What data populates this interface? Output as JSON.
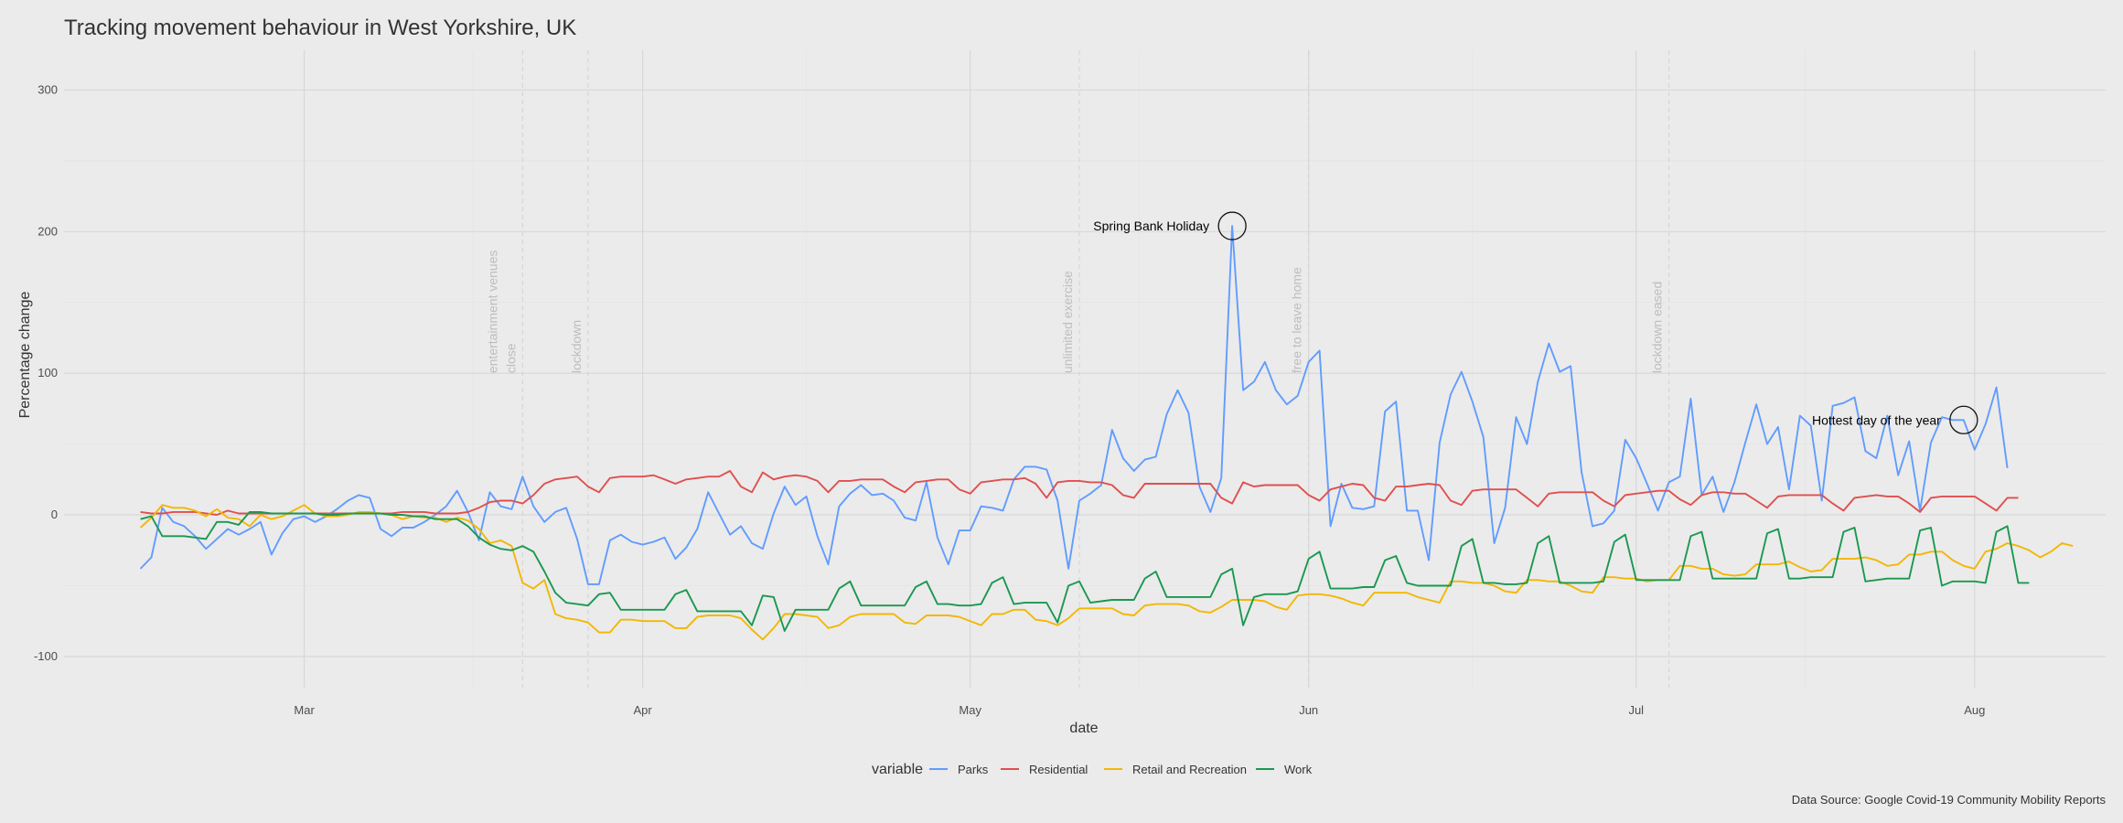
{
  "chart_data": {
    "type": "line",
    "title": "Tracking movement behaviour in West Yorkshire, UK",
    "xlabel": "date",
    "ylabel": "Percentage change",
    "x_range": [
      "2020-02-08",
      "2020-08-13"
    ],
    "ylim": [
      -122,
      328
    ],
    "y_ticks": [
      300,
      200,
      100,
      0,
      -100
    ],
    "y_tick_labels": [
      "300",
      "200",
      "100",
      "0",
      "-100"
    ],
    "x_ticks": [
      {
        "date": "2020-03-01",
        "label": "Mar"
      },
      {
        "date": "2020-04-01",
        "label": "Apr"
      },
      {
        "date": "2020-05-01",
        "label": "May"
      },
      {
        "date": "2020-06-01",
        "label": "Jun"
      },
      {
        "date": "2020-07-01",
        "label": "Jul"
      },
      {
        "date": "2020-08-01",
        "label": "Aug"
      }
    ],
    "grid": true,
    "legend": {
      "title": "variable",
      "position": "bottom"
    },
    "start_date": "2020-02-15",
    "series": [
      {
        "name": "Parks",
        "color": "#619cff",
        "values": [
          -38,
          -30,
          5,
          -5,
          -8,
          -15,
          -24,
          -17,
          -10,
          -14,
          -10,
          -5,
          -28,
          -13,
          -3,
          -1,
          -5,
          -1,
          4,
          10,
          14,
          12,
          -10,
          -15,
          -9,
          -9,
          -5,
          0,
          6,
          17,
          2,
          -18,
          16,
          6,
          4,
          27,
          6,
          -5,
          2,
          5,
          -17,
          -49,
          -49,
          -18,
          -14,
          -19,
          -21,
          -19,
          -16,
          -31,
          -23,
          -10,
          16,
          1,
          -14,
          -8,
          -20,
          -24,
          1,
          20,
          7,
          13,
          -15,
          -35,
          6,
          15,
          21,
          14,
          15,
          10,
          -2,
          -4,
          23,
          -16,
          -35,
          -11,
          -11,
          6,
          5,
          3,
          25,
          34,
          34,
          32,
          10,
          -38,
          10,
          15,
          21,
          60,
          40,
          31,
          39,
          41,
          71,
          88,
          72,
          20,
          2,
          26,
          204,
          88,
          94,
          108,
          88,
          78,
          84,
          108,
          116,
          -8,
          22,
          5,
          4,
          6,
          73,
          80,
          3,
          3,
          -32,
          51,
          85,
          101,
          80,
          55,
          -20,
          5,
          69,
          50,
          94,
          121,
          101,
          105,
          30,
          -8,
          -6,
          3,
          53,
          40,
          22,
          3,
          23,
          27,
          82,
          14,
          27,
          2,
          23,
          51,
          78,
          50,
          62,
          18,
          70,
          63,
          10,
          77,
          79,
          83,
          45,
          40,
          70,
          28,
          52,
          3,
          51,
          69,
          67,
          67,
          46,
          64,
          90,
          33
        ]
      },
      {
        "name": "Residential",
        "color": "#e04f4f",
        "values": [
          2,
          1,
          1,
          2,
          2,
          2,
          1,
          0,
          3,
          1,
          1,
          1,
          1,
          1,
          1,
          1,
          1,
          1,
          1,
          1,
          1,
          1,
          1,
          1,
          2,
          2,
          2,
          1,
          1,
          1,
          2,
          5,
          9,
          10,
          10,
          8,
          14,
          22,
          25,
          26,
          27,
          20,
          16,
          26,
          27,
          27,
          27,
          28,
          25,
          22,
          25,
          26,
          27,
          27,
          31,
          20,
          16,
          30,
          25,
          27,
          28,
          27,
          24,
          16,
          24,
          24,
          25,
          25,
          25,
          20,
          16,
          23,
          24,
          25,
          25,
          18,
          15,
          23,
          24,
          25,
          25,
          26,
          22,
          12,
          23,
          24,
          24,
          23,
          23,
          21,
          14,
          12,
          22,
          22,
          22,
          22,
          22,
          22,
          22,
          12,
          8,
          23,
          20,
          21,
          21,
          21,
          21,
          14,
          10,
          18,
          20,
          22,
          21,
          12,
          10,
          20,
          20,
          21,
          22,
          21,
          10,
          7,
          17,
          18,
          18,
          18,
          18,
          12,
          6,
          15,
          16,
          16,
          16,
          16,
          10,
          6,
          14,
          15,
          16,
          17,
          17,
          11,
          7,
          14,
          16,
          16,
          15,
          15,
          10,
          5,
          13,
          14,
          14,
          14,
          14,
          8,
          3,
          12,
          13,
          14,
          13,
          13,
          8,
          2,
          12,
          13,
          13,
          13,
          13,
          8,
          3,
          12,
          12
        ]
      },
      {
        "name": "Retail and Recreation",
        "color": "#f2b705",
        "values": [
          -9,
          -2,
          7,
          5,
          5,
          3,
          -1,
          4,
          -2,
          -3,
          -8,
          0,
          -3,
          -1,
          3,
          7,
          1,
          -1,
          -1,
          0,
          2,
          2,
          1,
          0,
          -3,
          -1,
          -2,
          -2,
          -5,
          -2,
          -4,
          -10,
          -20,
          -18,
          -22,
          -48,
          -52,
          -46,
          -70,
          -73,
          -74,
          -76,
          -83,
          -83,
          -74,
          -74,
          -75,
          -75,
          -75,
          -80,
          -80,
          -72,
          -71,
          -71,
          -71,
          -73,
          -81,
          -88,
          -80,
          -70,
          -70,
          -71,
          -72,
          -80,
          -78,
          -72,
          -70,
          -70,
          -70,
          -70,
          -76,
          -77,
          -71,
          -71,
          -71,
          -72,
          -75,
          -78,
          -70,
          -70,
          -67,
          -67,
          -74,
          -75,
          -78,
          -73,
          -66,
          -66,
          -66,
          -66,
          -70,
          -71,
          -64,
          -63,
          -63,
          -63,
          -64,
          -68,
          -69,
          -65,
          -60,
          -60,
          -60,
          -61,
          -65,
          -67,
          -57,
          -56,
          -56,
          -57,
          -59,
          -62,
          -64,
          -55,
          -55,
          -55,
          -55,
          -58,
          -60,
          -62,
          -47,
          -47,
          -48,
          -48,
          -50,
          -54,
          -55,
          -46,
          -46,
          -47,
          -47,
          -50,
          -54,
          -55,
          -44,
          -44,
          -45,
          -45,
          -47,
          -46,
          -46,
          -36,
          -36,
          -38,
          -38,
          -42,
          -43,
          -42,
          -35,
          -35,
          -35,
          -33,
          -37,
          -40,
          -39,
          -31,
          -31,
          -31,
          -30,
          -32,
          -36,
          -35,
          -28,
          -28,
          -26,
          -26,
          -32,
          -36,
          -38,
          -26,
          -24,
          -20,
          -22,
          -25,
          -30,
          -26,
          -20,
          -22
        ]
      },
      {
        "name": "Work",
        "color": "#1a9850",
        "values": [
          -3,
          -1,
          -15,
          -15,
          -15,
          -16,
          -17,
          -5,
          -5,
          -7,
          2,
          2,
          1,
          1,
          1,
          1,
          1,
          0,
          0,
          1,
          1,
          1,
          1,
          0,
          0,
          -1,
          -1,
          -3,
          -3,
          -3,
          -8,
          -16,
          -21,
          -24,
          -25,
          -22,
          -26,
          -40,
          -55,
          -62,
          -63,
          -64,
          -56,
          -55,
          -67,
          -67,
          -67,
          -67,
          -67,
          -56,
          -53,
          -68,
          -68,
          -68,
          -68,
          -68,
          -78,
          -57,
          -58,
          -82,
          -67,
          -67,
          -67,
          -67,
          -52,
          -47,
          -64,
          -64,
          -64,
          -64,
          -64,
          -51,
          -47,
          -63,
          -63,
          -64,
          -64,
          -63,
          -48,
          -44,
          -63,
          -62,
          -62,
          -62,
          -76,
          -50,
          -47,
          -62,
          -61,
          -60,
          -60,
          -60,
          -45,
          -40,
          -58,
          -58,
          -58,
          -58,
          -58,
          -42,
          -38,
          -78,
          -58,
          -56,
          -56,
          -56,
          -54,
          -31,
          -26,
          -52,
          -52,
          -52,
          -51,
          -51,
          -32,
          -29,
          -48,
          -50,
          -50,
          -50,
          -50,
          -22,
          -17,
          -48,
          -48,
          -49,
          -49,
          -48,
          -20,
          -15,
          -48,
          -48,
          -48,
          -48,
          -47,
          -19,
          -14,
          -46,
          -46,
          -46,
          -46,
          -46,
          -15,
          -12,
          -45,
          -45,
          -45,
          -45,
          -45,
          -13,
          -10,
          -45,
          -45,
          -44,
          -44,
          -44,
          -12,
          -9,
          -47,
          -46,
          -45,
          -45,
          -45,
          -11,
          -9,
          -50,
          -47,
          -47,
          -47,
          -48,
          -12,
          -8,
          -48,
          -48
        ]
      }
    ],
    "events": [
      {
        "date": "2020-03-21",
        "lines": [
          "entertainment venues",
          "close"
        ]
      },
      {
        "date": "2020-03-27",
        "lines": [
          "lockdown"
        ]
      },
      {
        "date": "2020-05-11",
        "lines": [
          "unlimited exercise"
        ]
      },
      {
        "date": "2020-06-01",
        "lines": [
          "free to leave home"
        ]
      },
      {
        "date": "2020-07-04",
        "lines": [
          "lockdown eased"
        ]
      }
    ],
    "annotations": [
      {
        "date": "2020-05-25",
        "value": 204,
        "label": "Spring Bank Holiday"
      },
      {
        "date": "2020-07-31",
        "value": 67,
        "label": "Hottest day of the year"
      }
    ]
  },
  "caption": "Data Source: Google Covid-19 Community Mobility Reports"
}
